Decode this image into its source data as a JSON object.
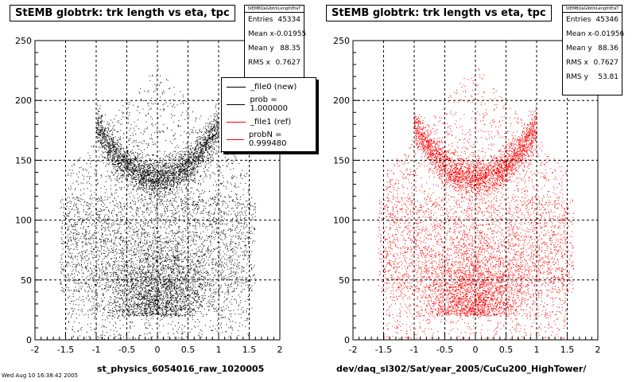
{
  "canvas": {
    "background": "#ffffff"
  },
  "chart_data": [
    {
      "type": "scatter",
      "title": "StEMB globtrk: trk length vs eta, tpc",
      "xlabel": "st_physics_6054016_raw_1020005",
      "ylabel": "",
      "xlim": [
        -2,
        2
      ],
      "ylim": [
        0,
        250
      ],
      "xticks": [
        "-2",
        "-1.5",
        "-1",
        "-0.5",
        "0",
        "0.5",
        "1",
        "1.5",
        "2"
      ],
      "yticks": [
        "0",
        "50",
        "100",
        "150",
        "200",
        "250"
      ],
      "grid": true,
      "marker_color": "#000000",
      "stats": {
        "name": "StEMBQaGlbtrkLengthEtaT",
        "entries_label": "Entries",
        "entries": "45334",
        "meanx_label": "Mean x",
        "meanx": "-0.01955",
        "meany_label": "Mean y",
        "meany": "88.35",
        "rmsx_label": "RMS x",
        "rmsx": "0.7627"
      },
      "legend": [
        {
          "label": "_file0 (new)",
          "color": "#000000"
        },
        {
          "label": "prob = 1.000000",
          "color": "#000000"
        },
        {
          "label": "_file1 (ref)",
          "color": "#ff0000"
        },
        {
          "label": "probN = 0.999480",
          "color": "#ff0000"
        }
      ]
    },
    {
      "type": "scatter",
      "title": "StEMB globtrk: trk length vs eta, tpc",
      "xlabel": "dev/daq_sl302/Sat/year_2005/CuCu200_HighTower/",
      "ylabel": "",
      "xlim": [
        -2,
        2
      ],
      "ylim": [
        0,
        250
      ],
      "xticks": [
        "-2",
        "-1.5",
        "-1",
        "-0.5",
        "0",
        "0.5",
        "1",
        "1.5",
        "2"
      ],
      "yticks": [
        "0",
        "50",
        "100",
        "150",
        "200",
        "250"
      ],
      "grid": true,
      "marker_color": "#ff0000",
      "stats": {
        "name": "StEMBQaGlbtrkLengthEtaT",
        "entries_label": "Entries",
        "entries": "45346",
        "meanx_label": "Mean x",
        "meanx": "-0.01956",
        "meany_label": "Mean y",
        "meany": "88.36",
        "rmsx_label": "RMS x",
        "rmsx": "0.7627",
        "rmsy_label": "RMS y",
        "rmsy": "53.81"
      }
    }
  ],
  "footer": "Wed Aug 10 16:38:42 2005"
}
